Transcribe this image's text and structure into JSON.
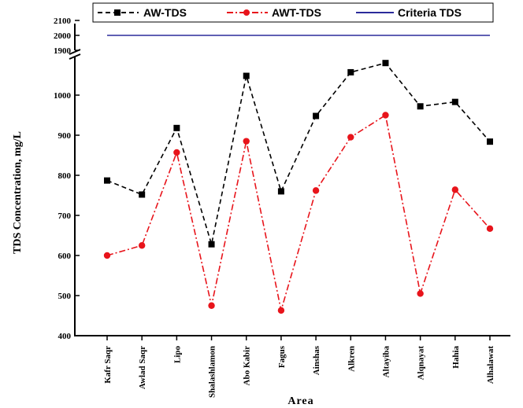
{
  "chart_data": {
    "type": "line",
    "xlabel": "Area",
    "ylabel": "TDS Concentration, mg/L",
    "categories": [
      "Kafr Saqr",
      "Awlad Saqr",
      "Lipo",
      "Shalashlamon",
      "Abo Kabir",
      "Fagus",
      "Ainshas",
      "Alkren",
      "Altayiba",
      "Alqnayat",
      "Hahia",
      "Alhalawat"
    ],
    "y_ticks_lower": [
      400,
      500,
      600,
      700,
      800,
      900,
      1000
    ],
    "y_ticks_upper": [
      1900,
      2000,
      2100
    ],
    "ylim_lower": [
      400,
      1100
    ],
    "ylim_upper": [
      1900,
      2100
    ],
    "axis_break": true,
    "legend_position": "top",
    "series": [
      {
        "name": "AW-TDS",
        "color": "#000000",
        "marker": "square",
        "line_style": "dashed",
        "values": [
          787,
          752,
          918,
          628,
          1048,
          760,
          948,
          1057,
          1080,
          972,
          983,
          884
        ]
      },
      {
        "name": "AWT-TDS",
        "color": "#e8141b",
        "marker": "circle",
        "line_style": "dash-dot",
        "values": [
          600,
          625,
          857,
          475,
          885,
          463,
          762,
          895,
          950,
          505,
          764,
          667
        ]
      }
    ],
    "reference_line": {
      "name": "Criteria TDS",
      "value": 2000,
      "color": "#2b2b9a"
    }
  }
}
